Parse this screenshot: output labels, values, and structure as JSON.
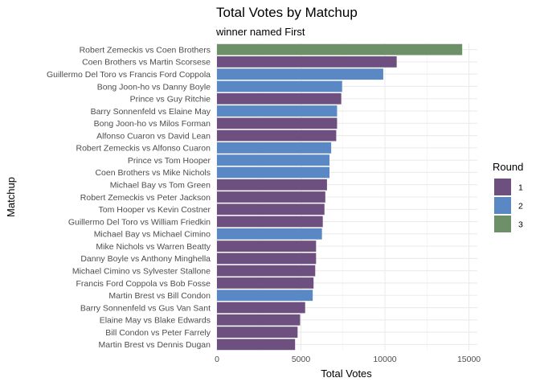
{
  "chart_data": {
    "type": "bar",
    "orientation": "horizontal",
    "title": "Total Votes by Matchup",
    "subtitle": "winner named First",
    "xlabel": "Total Votes",
    "ylabel": "Matchup",
    "xlim": [
      0,
      15500
    ],
    "x_ticks": [
      0,
      5000,
      10000,
      15000
    ],
    "x_tick_labels": [
      "0",
      "5000",
      "10000",
      "15000"
    ],
    "grid": true,
    "legend": {
      "title": "Round",
      "placement": "right",
      "entries": [
        {
          "label": "1",
          "color": "#6e5080"
        },
        {
          "label": "2",
          "color": "#5a88c4"
        },
        {
          "label": "3",
          "color": "#6e9068"
        }
      ]
    },
    "bars": [
      {
        "matchup": "Robert Zemeckis vs Coen Brothers",
        "votes": 14600,
        "round": "3"
      },
      {
        "matchup": "Coen Brothers vs Martin Scorsese",
        "votes": 10700,
        "round": "1"
      },
      {
        "matchup": "Guillermo Del Toro vs Francis Ford Coppola",
        "votes": 9900,
        "round": "2"
      },
      {
        "matchup": "Bong Joon-ho vs Danny Boyle",
        "votes": 7450,
        "round": "2"
      },
      {
        "matchup": "Prince vs Guy Ritchie",
        "votes": 7400,
        "round": "1"
      },
      {
        "matchup": "Barry Sonnenfeld vs Elaine May",
        "votes": 7150,
        "round": "2"
      },
      {
        "matchup": "Bong Joon-ho vs Milos Forman",
        "votes": 7150,
        "round": "1"
      },
      {
        "matchup": "Alfonso Cuaron vs David Lean",
        "votes": 7100,
        "round": "1"
      },
      {
        "matchup": "Robert Zemeckis vs Alfonso Cuaron",
        "votes": 6800,
        "round": "2"
      },
      {
        "matchup": "Prince vs Tom Hooper",
        "votes": 6700,
        "round": "2"
      },
      {
        "matchup": "Coen Brothers vs Mike Nichols",
        "votes": 6700,
        "round": "2"
      },
      {
        "matchup": "Michael Bay vs Tom Green",
        "votes": 6550,
        "round": "1"
      },
      {
        "matchup": "Robert Zemeckis vs Peter Jackson",
        "votes": 6450,
        "round": "1"
      },
      {
        "matchup": "Tom Hooper vs Kevin Costner",
        "votes": 6400,
        "round": "1"
      },
      {
        "matchup": "Guillermo Del Toro vs William Friedkin",
        "votes": 6300,
        "round": "1"
      },
      {
        "matchup": "Michael Bay vs Michael Cimino",
        "votes": 6250,
        "round": "2"
      },
      {
        "matchup": "Mike Nichols vs Warren Beatty",
        "votes": 5900,
        "round": "1"
      },
      {
        "matchup": "Danny Boyle vs Anthony Minghella",
        "votes": 5900,
        "round": "1"
      },
      {
        "matchup": "Michael Cimino vs Sylvester Stallone",
        "votes": 5850,
        "round": "1"
      },
      {
        "matchup": "Francis Ford Coppola vs Bob Fosse",
        "votes": 5750,
        "round": "1"
      },
      {
        "matchup": "Martin Brest vs Bill Condon",
        "votes": 5700,
        "round": "2"
      },
      {
        "matchup": "Barry Sonnenfeld vs Gus Van Sant",
        "votes": 5250,
        "round": "1"
      },
      {
        "matchup": "Elaine May vs Blake Edwards",
        "votes": 4950,
        "round": "1"
      },
      {
        "matchup": "Bill Condon vs Peter Farrely",
        "votes": 4800,
        "round": "1"
      },
      {
        "matchup": "Martin Brest vs Dennis Dugan",
        "votes": 4650,
        "round": "1"
      }
    ]
  }
}
